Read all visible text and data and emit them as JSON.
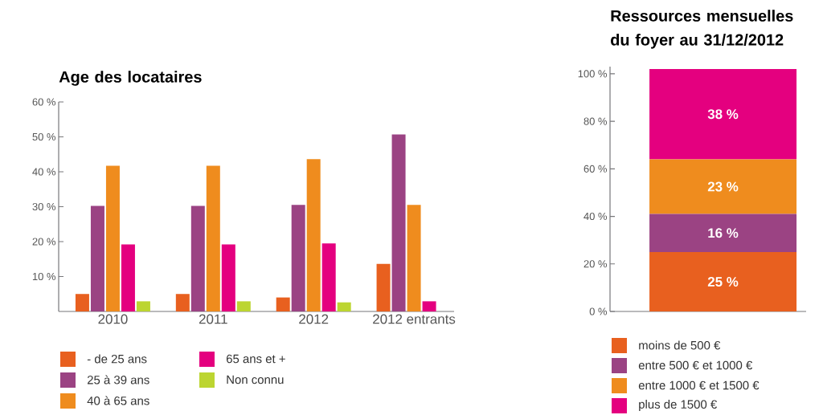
{
  "chart_data": [
    {
      "type": "bar",
      "title": "Age des locataires",
      "categories": [
        "2010",
        "2011",
        "2012",
        "2012 entrants"
      ],
      "ylim": [
        0,
        60
      ],
      "yticks": [
        {
          "value": 10,
          "label": "10 %"
        },
        {
          "value": 20,
          "label": "20 %"
        },
        {
          "value": 30,
          "label": "30 %"
        },
        {
          "value": 40,
          "label": "40 %"
        },
        {
          "value": 50,
          "label": "50 %"
        },
        {
          "value": 60,
          "label": "60 %"
        }
      ],
      "legend": "bottom",
      "series": [
        {
          "name": "- de 25 ans",
          "color": "#e8601f",
          "values": [
            5,
            5,
            4,
            13.6
          ]
        },
        {
          "name": "25 à 39 ans",
          "color": "#9b4383",
          "values": [
            30.2,
            30.2,
            30.5,
            50.7
          ]
        },
        {
          "name": "40 à 65 ans",
          "color": "#ef8c1e",
          "values": [
            41.7,
            41.7,
            43.6,
            30.5
          ]
        },
        {
          "name": "65 ans et +",
          "color": "#e4007f",
          "values": [
            19.2,
            19.2,
            19.5,
            2.9
          ]
        },
        {
          "name": "Non connu",
          "color": "#bcd531",
          "values": [
            2.9,
            2.9,
            2.6,
            null
          ]
        }
      ]
    },
    {
      "type": "bar",
      "title": "Ressources mensuelles du foyer au 31/12/2012",
      "stacked": true,
      "categories": [
        null
      ],
      "ylim": [
        0,
        103
      ],
      "yticks": [
        {
          "value": 0,
          "label": "0 %"
        },
        {
          "value": 20,
          "label": "20 %"
        },
        {
          "value": 40,
          "label": "40 %"
        },
        {
          "value": 60,
          "label": "60 %"
        },
        {
          "value": 80,
          "label": "80 %"
        },
        {
          "value": 100,
          "label": "100 %"
        }
      ],
      "legend": "bottom",
      "series": [
        {
          "name": "moins de 500 €",
          "color": "#e8601f",
          "values": [
            25
          ],
          "value_labels": [
            "25 %"
          ]
        },
        {
          "name": "entre 500 € et 1000 €",
          "color": "#9b4383",
          "values": [
            16
          ],
          "value_labels": [
            "16 %"
          ]
        },
        {
          "name": "entre 1000 € et 1500 €",
          "color": "#ef8c1e",
          "values": [
            23
          ],
          "value_labels": [
            "23 %"
          ]
        },
        {
          "name": "plus de 1500 €",
          "color": "#e4007f",
          "values": [
            38
          ],
          "value_labels": [
            "38 %"
          ]
        }
      ]
    }
  ]
}
